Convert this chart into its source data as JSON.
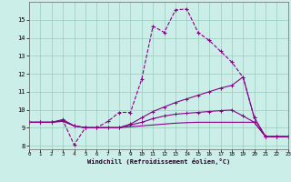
{
  "xlabel": "Windchill (Refroidissement éolien,°C)",
  "bg_color": "#cceee8",
  "grid_color": "#99ccbb",
  "line_color": "#880088",
  "xlim": [
    0,
    23
  ],
  "ylim": [
    7.8,
    16.0
  ],
  "yticks": [
    8,
    9,
    10,
    11,
    12,
    13,
    14,
    15
  ],
  "xticks": [
    0,
    1,
    2,
    3,
    4,
    5,
    6,
    7,
    8,
    9,
    10,
    11,
    12,
    13,
    14,
    15,
    16,
    17,
    18,
    19,
    20,
    21,
    22,
    23
  ],
  "line1_x": [
    0,
    1,
    2,
    3,
    4,
    5,
    6,
    7,
    8,
    9,
    10,
    11,
    12,
    13,
    14,
    15,
    16,
    17,
    18,
    19,
    20,
    21,
    22,
    23
  ],
  "line1_y": [
    9.3,
    9.3,
    9.3,
    9.4,
    8.05,
    9.0,
    9.0,
    9.35,
    9.85,
    9.85,
    11.7,
    14.65,
    14.3,
    15.55,
    15.6,
    14.3,
    13.85,
    13.25,
    12.65,
    11.8,
    9.55,
    8.5,
    8.5,
    8.5
  ],
  "line2_x": [
    0,
    1,
    2,
    3,
    4,
    5,
    6,
    7,
    8,
    9,
    10,
    11,
    12,
    13,
    14,
    15,
    16,
    17,
    18,
    19,
    20,
    21,
    22,
    23
  ],
  "line2_y": [
    9.3,
    9.3,
    9.3,
    9.45,
    9.1,
    9.0,
    9.0,
    9.0,
    9.0,
    9.2,
    9.55,
    9.9,
    10.15,
    10.4,
    10.6,
    10.8,
    11.0,
    11.2,
    11.35,
    11.82,
    9.55,
    8.5,
    8.5,
    8.5
  ],
  "line3_x": [
    0,
    1,
    2,
    3,
    4,
    5,
    6,
    7,
    8,
    9,
    10,
    11,
    12,
    13,
    14,
    15,
    16,
    17,
    18,
    19,
    20,
    21,
    22,
    23
  ],
  "line3_y": [
    9.3,
    9.3,
    9.3,
    9.4,
    9.1,
    9.0,
    9.0,
    9.0,
    9.0,
    9.15,
    9.3,
    9.5,
    9.65,
    9.75,
    9.8,
    9.85,
    9.9,
    9.95,
    9.98,
    9.65,
    9.3,
    8.5,
    8.5,
    8.5
  ],
  "line4_x": [
    0,
    1,
    2,
    3,
    4,
    5,
    6,
    7,
    8,
    9,
    10,
    11,
    12,
    13,
    14,
    15,
    16,
    17,
    18,
    19,
    20,
    21,
    22,
    23
  ],
  "line4_y": [
    9.3,
    9.3,
    9.3,
    9.35,
    9.1,
    9.0,
    9.0,
    9.0,
    9.0,
    9.05,
    9.1,
    9.15,
    9.2,
    9.25,
    9.28,
    9.3,
    9.3,
    9.3,
    9.3,
    9.3,
    9.3,
    8.5,
    8.5,
    8.5
  ]
}
